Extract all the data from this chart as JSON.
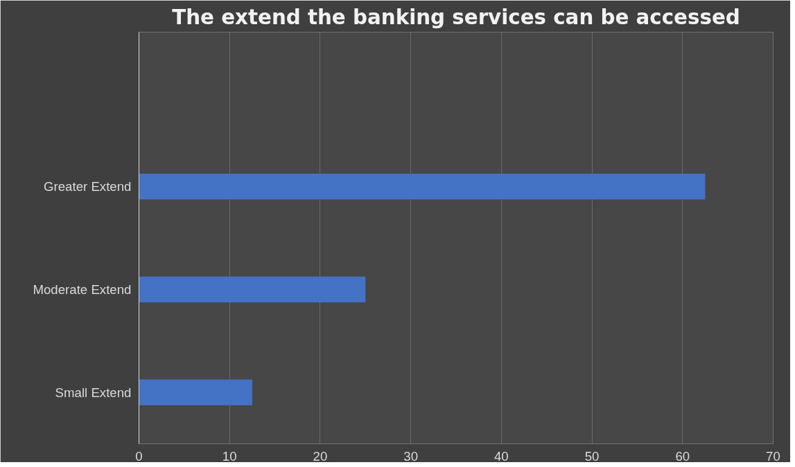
{
  "chart_data": {
    "type": "bar",
    "orientation": "horizontal",
    "title": "The extend the banking services can be accessed",
    "categories": [
      "Greater Extend",
      "Moderate Extend",
      "Small Extend"
    ],
    "values": [
      62.5,
      25,
      12.5
    ],
    "color": "#4472c4",
    "xlim": [
      0,
      70
    ],
    "xticks": [
      0,
      10,
      20,
      30,
      40,
      50,
      60,
      70
    ],
    "grid": "x"
  }
}
